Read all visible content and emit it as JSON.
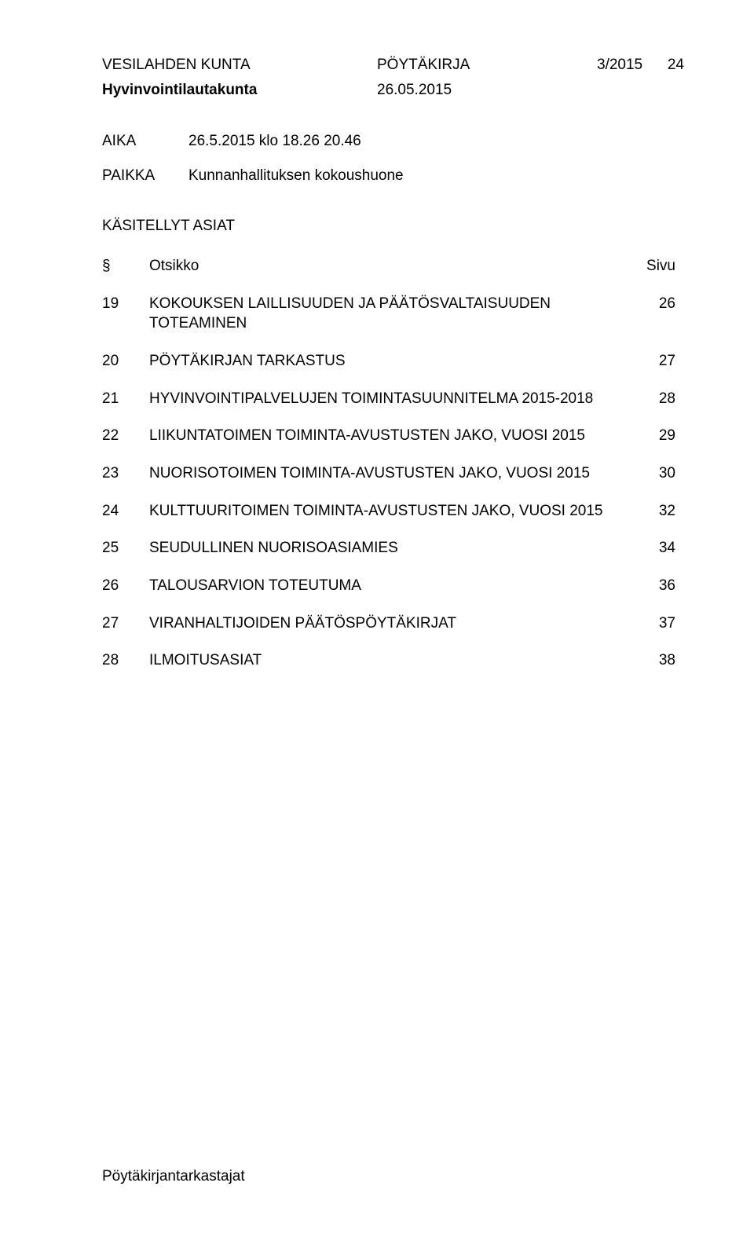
{
  "header": {
    "org": "VESILAHDEN KUNTA",
    "docType": "PÖYTÄKIRJA",
    "docNumber": "3/2015",
    "pageTop": "24",
    "board": "Hyvinvointilautakunta",
    "date": "26.05.2015"
  },
  "meta": {
    "aikaLabel": "AIKA",
    "aikaValue": "26.5.2015 klo 18.26 20.46",
    "paikkaLabel": "PAIKKA",
    "paikkaValue": "Kunnanhallituksen kokoushuone"
  },
  "section": "KÄSITELLYT ASIAT",
  "columns": {
    "sym": "§",
    "title": "Otsikko",
    "page": "Sivu"
  },
  "items": [
    {
      "n": "19",
      "t": "KOKOUKSEN LAILLISUUDEN JA PÄÄTÖSVALTAISUUDEN TOTEAMINEN",
      "p": "26"
    },
    {
      "n": "20",
      "t": "PÖYTÄKIRJAN TARKASTUS",
      "p": "27"
    },
    {
      "n": "21",
      "t": "HYVINVOINTIPALVELUJEN TOIMINTASUUNNITELMA 2015-2018",
      "p": "28"
    },
    {
      "n": "22",
      "t": "LIIKUNTATOIMEN TOIMINTA-AVUSTUSTEN JAKO, VUOSI 2015",
      "p": "29"
    },
    {
      "n": "23",
      "t": "NUORISOTOIMEN TOIMINTA-AVUSTUSTEN JAKO, VUOSI 2015",
      "p": "30"
    },
    {
      "n": "24",
      "t": "KULTTUURITOIMEN TOIMINTA-AVUSTUSTEN JAKO, VUOSI 2015",
      "p": "32"
    },
    {
      "n": "25",
      "t": "SEUDULLINEN NUORISOASIAMIES",
      "p": "34"
    },
    {
      "n": "26",
      "t": "TALOUSARVION TOTEUTUMA",
      "p": "36"
    },
    {
      "n": "27",
      "t": "VIRANHALTIJOIDEN PÄÄTÖSPÖYTÄKIRJAT",
      "p": "37"
    },
    {
      "n": "28",
      "t": "ILMOITUSASIAT",
      "p": "38"
    }
  ],
  "footer": "Pöytäkirjantarkastajat"
}
